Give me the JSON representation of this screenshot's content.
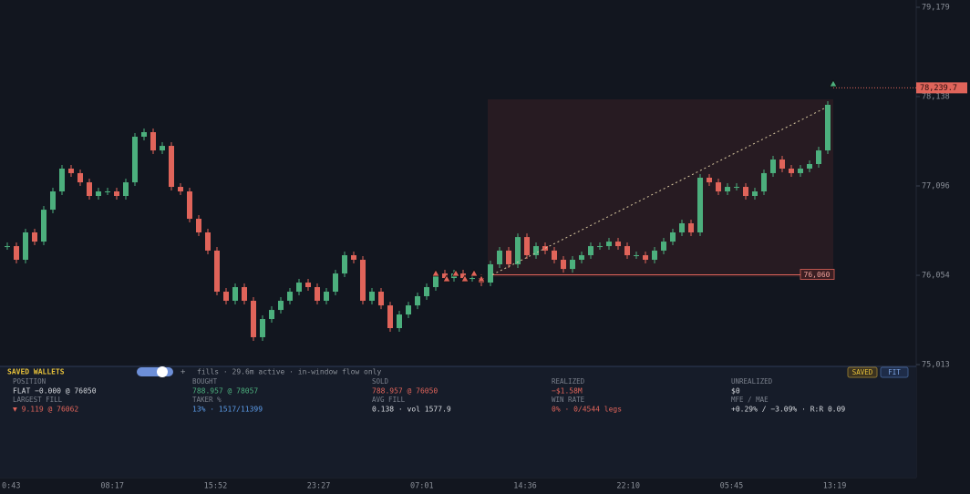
{
  "chart_data": {
    "type": "candlestick",
    "up_color": "#4caf7d",
    "down_color": "#e0645a",
    "values": [
      76394,
      76235,
      76554,
      76447,
      76819,
      77032,
      77298,
      77245,
      77138,
      76979,
      77032,
      77032,
      76979,
      77138,
      77670,
      77723,
      77510,
      77563,
      77085,
      77032,
      76713,
      76554,
      76342,
      75863,
      75757,
      75916,
      75757,
      75332,
      75544,
      75650,
      75757,
      75863,
      75969,
      75916,
      75757,
      75863,
      76075,
      76288,
      76235,
      75757,
      75863,
      75703,
      75438,
      75597,
      75703,
      75810,
      75916,
      76075,
      76022,
      76075,
      76022,
      76022,
      75969,
      76182,
      76342,
      76182,
      76500,
      76288,
      76394,
      76342,
      76235,
      76128,
      76235,
      76288,
      76394,
      76394,
      76447,
      76394,
      76288,
      76288,
      76235,
      76342,
      76447,
      76554,
      76660,
      76554,
      77192,
      77138,
      77032,
      77085,
      77085,
      76979,
      77032,
      77245,
      77404,
      77298,
      77245,
      77298,
      77351,
      77510,
      78042
    ],
    "ylim": [
      73695,
      79264
    ],
    "yticks": [
      {
        "value": 79179,
        "label": "79,179"
      },
      {
        "value": 78138,
        "label": "78,138"
      },
      {
        "value": 77096,
        "label": "77,096"
      },
      {
        "value": 76054,
        "label": "76,054"
      },
      {
        "value": 75013,
        "label": "75,013"
      }
    ],
    "time_labels": [
      "0:43",
      "08:17",
      "15:52",
      "23:27",
      "07:01",
      "14:36",
      "22:10",
      "05:45",
      "13:19"
    ],
    "last_price": {
      "value": 78239.7,
      "label": "78,239.7"
    },
    "range_low": {
      "value": 76060,
      "label": "76,060"
    }
  },
  "panel": {
    "title": "SAVED WALLETS",
    "add": "+",
    "status": "fills · 29.6m active · in-window flow only",
    "buttons": [
      "SAVED",
      "FIT"
    ],
    "columns": [
      {
        "label": "POSITION",
        "value": "FLAT −0.000 @ 76050",
        "color": "#d6d9de",
        "label2": "LARGEST FILL",
        "value2": "▼ 9.119 @ 76062",
        "color2": "#e0645a"
      },
      {
        "label": "BOUGHT",
        "value": "788.957 @ 78057",
        "color": "#4caf7d",
        "label2": "TAKER %",
        "value2": "13% · 1517/11399",
        "color2": "#5b9be8"
      },
      {
        "label": "SOLD",
        "value": "788.957 @ 76050",
        "color": "#e0645a",
        "label2": "AVG FILL",
        "value2": "0.138 · vol 1577.9",
        "color2": "#d6d9de"
      },
      {
        "label": "REALIZED",
        "value": "−$1.58M",
        "color": "#e0645a",
        "label2": "WIN RATE",
        "value2": "0% · 0/4544 legs",
        "color2": "#e0645a"
      },
      {
        "label": "UNREALIZED",
        "value": "$0",
        "color": "#d6d9de",
        "label2": "MFE / MAE",
        "value2": "+0.29% / −3.09% · R:R 0.09",
        "color2": "#d6d9de"
      }
    ]
  }
}
